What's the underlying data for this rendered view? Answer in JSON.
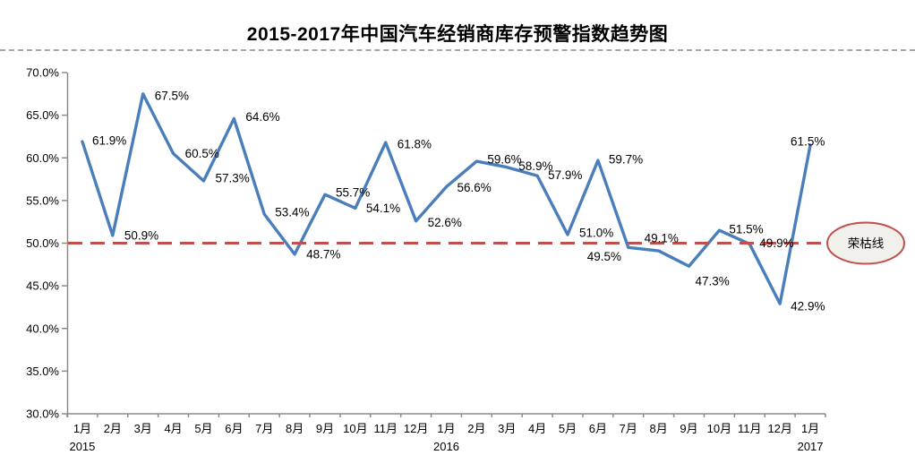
{
  "title": "2015-2017年中国汽车经销商库存预警指数趋势图",
  "colors": {
    "series_line": "#4A7EBB",
    "reference_line": "#C0504D",
    "axis": "#8C8C8C",
    "text": "#000000",
    "separator": "#A6A6A6",
    "callout_fill": "#F2F0EA",
    "callout_border": "#C0504D"
  },
  "chart_data": {
    "type": "line",
    "title": "2015-2017年中国汽车经销商库存预警指数趋势图",
    "x": [
      "1月",
      "2月",
      "3月",
      "4月",
      "5月",
      "6月",
      "7月",
      "8月",
      "9月",
      "10月",
      "11月",
      "12月",
      "1月",
      "2月",
      "3月",
      "4月",
      "5月",
      "6月",
      "7月",
      "8月",
      "9月",
      "10月",
      "11月",
      "12月",
      "1月"
    ],
    "year_markers": [
      {
        "label": "2015",
        "index": 0
      },
      {
        "label": "2016",
        "index": 12
      },
      {
        "label": "2017",
        "index": 24
      }
    ],
    "values": [
      61.9,
      50.9,
      67.5,
      60.5,
      57.3,
      64.6,
      53.4,
      48.7,
      55.7,
      54.1,
      61.8,
      52.6,
      56.6,
      59.6,
      58.9,
      57.9,
      51.0,
      59.7,
      49.5,
      49.1,
      47.3,
      51.5,
      49.9,
      42.9,
      61.5
    ],
    "data_labels": [
      "61.9%",
      "50.9%",
      "67.5%",
      "60.5%",
      "57.3%",
      "64.6%",
      "53.4%",
      "48.7%",
      "55.7%",
      "54.1%",
      "61.8%",
      "52.6%",
      "56.6%",
      "59.6%",
      "58.9%",
      "57.9%",
      "51.0%",
      "59.7%",
      "49.5%",
      "49.1%",
      "47.3%",
      "51.5%",
      "49.9%",
      "42.9%",
      "61.5%"
    ],
    "ylim": [
      30,
      70
    ],
    "ytick_step": 5,
    "ytick_labels": [
      "30.0%",
      "35.0%",
      "40.0%",
      "45.0%",
      "50.0%",
      "55.0%",
      "60.0%",
      "65.0%",
      "70.0%"
    ],
    "grid": false,
    "legend": "none",
    "reference_line": {
      "value": 50,
      "label": "荣枯线"
    }
  }
}
